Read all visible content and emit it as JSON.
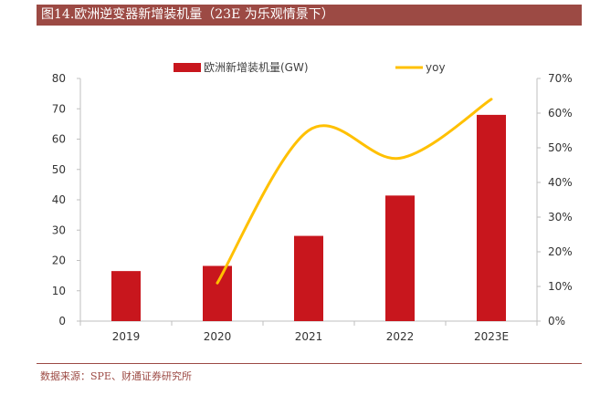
{
  "header": {
    "title": "图14.欧洲逆变器新增装机量（23E 为乐观情景下）"
  },
  "footer": {
    "source": "数据来源：SPE、财通证券研究所"
  },
  "chart_data": {
    "type": "bar",
    "categories": [
      "2019",
      "2020",
      "2021",
      "2022",
      "2023E"
    ],
    "series": [
      {
        "name": "欧洲新增装机量(GW)",
        "type": "bar",
        "axis": "left",
        "color": "#c8161d",
        "values": [
          16.5,
          18.2,
          28.1,
          41.4,
          68.0
        ]
      },
      {
        "name": "yoy",
        "type": "line",
        "axis": "right",
        "color": "#ffc000",
        "values": [
          null,
          0.11,
          0.55,
          0.47,
          0.64
        ]
      }
    ],
    "y_left": {
      "ticks": [
        0,
        10,
        20,
        30,
        40,
        50,
        60,
        70,
        80
      ],
      "ylim": [
        0,
        80
      ]
    },
    "y_right": {
      "ticks": [
        "0%",
        "10%",
        "20%",
        "30%",
        "40%",
        "50%",
        "60%",
        "70%"
      ],
      "ylim": [
        0,
        0.7
      ]
    },
    "legend": "top",
    "grid": false
  }
}
